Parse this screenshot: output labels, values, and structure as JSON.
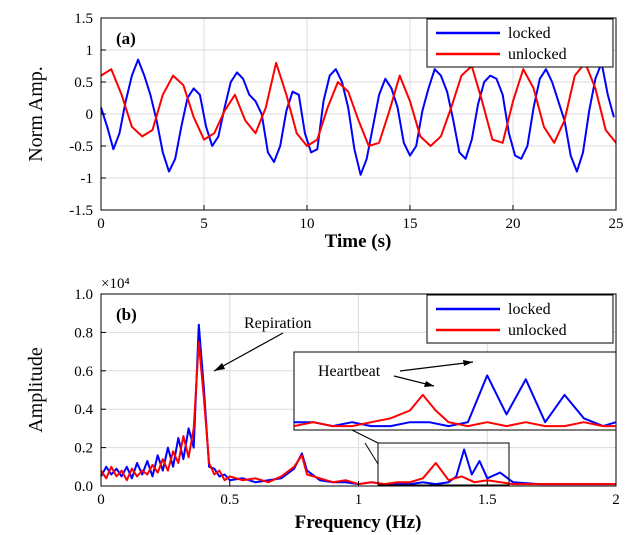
{
  "chart_data": [
    {
      "type": "line",
      "panel_label": "(a)",
      "xlabel": "Time (s)",
      "ylabel": "Norm Amp.",
      "xlim": [
        0,
        25
      ],
      "ylim": [
        -1.5,
        1.5
      ],
      "xticks": [
        "0",
        "5",
        "10",
        "15",
        "20",
        "25"
      ],
      "yticks": [
        "1.5",
        "1",
        "0.5",
        "0",
        "-0.5",
        "-1",
        "-1.5"
      ],
      "grid": true,
      "legend_position": "top-right",
      "series": [
        {
          "name": "locked",
          "color": "#0000ff",
          "x": [
            0.0,
            0.3,
            0.6,
            0.9,
            1.2,
            1.5,
            1.8,
            2.1,
            2.4,
            2.7,
            3.0,
            3.3,
            3.6,
            3.9,
            4.2,
            4.5,
            4.8,
            5.1,
            5.4,
            5.7,
            6.0,
            6.3,
            6.6,
            6.9,
            7.2,
            7.5,
            7.8,
            8.1,
            8.4,
            8.7,
            9.0,
            9.3,
            9.6,
            9.9,
            10.2,
            10.5,
            10.8,
            11.1,
            11.4,
            11.7,
            12.0,
            12.3,
            12.6,
            12.9,
            13.2,
            13.5,
            13.8,
            14.1,
            14.4,
            14.7,
            15.0,
            15.3,
            15.6,
            15.9,
            16.2,
            16.5,
            16.8,
            17.1,
            17.4,
            17.7,
            18.0,
            18.3,
            18.6,
            18.9,
            19.2,
            19.5,
            19.8,
            20.1,
            20.4,
            20.7,
            21.0,
            21.3,
            21.6,
            21.9,
            22.2,
            22.5,
            22.8,
            23.1,
            23.4,
            23.7,
            24.0,
            24.3,
            24.6,
            24.9
          ],
          "y": [
            0.1,
            -0.2,
            -0.55,
            -0.3,
            0.2,
            0.6,
            0.85,
            0.6,
            0.3,
            -0.1,
            -0.6,
            -0.9,
            -0.7,
            -0.2,
            0.25,
            0.4,
            0.3,
            -0.2,
            -0.5,
            -0.35,
            0.1,
            0.5,
            0.65,
            0.55,
            0.3,
            0.2,
            0.0,
            -0.6,
            -0.75,
            -0.5,
            0.05,
            0.35,
            0.3,
            -0.3,
            -0.6,
            -0.55,
            0.2,
            0.6,
            0.7,
            0.5,
            0.1,
            -0.55,
            -0.95,
            -0.7,
            -0.2,
            0.3,
            0.55,
            0.4,
            0.1,
            -0.45,
            -0.65,
            -0.5,
            0.05,
            0.4,
            0.7,
            0.6,
            0.35,
            -0.1,
            -0.6,
            -0.7,
            -0.4,
            0.15,
            0.5,
            0.6,
            0.55,
            0.3,
            -0.3,
            -0.65,
            -0.7,
            -0.5,
            0.1,
            0.55,
            0.7,
            0.5,
            0.2,
            -0.1,
            -0.65,
            -0.9,
            -0.6,
            0.05,
            0.55,
            0.8,
            0.3,
            -0.05
          ]
        },
        {
          "name": "unlocked",
          "color": "#ff0000",
          "x": [
            0.0,
            0.5,
            1.0,
            1.5,
            2.0,
            2.5,
            3.0,
            3.5,
            4.0,
            4.5,
            5.0,
            5.5,
            6.0,
            6.5,
            7.0,
            7.5,
            8.0,
            8.5,
            9.0,
            9.5,
            10.0,
            10.5,
            11.0,
            11.5,
            12.0,
            12.5,
            13.0,
            13.5,
            14.0,
            14.5,
            15.0,
            15.5,
            16.0,
            16.5,
            17.0,
            17.5,
            18.0,
            18.5,
            19.0,
            19.5,
            20.0,
            20.5,
            21.0,
            21.5,
            22.0,
            22.5,
            23.0,
            23.5,
            24.0,
            24.5,
            25.0
          ],
          "y": [
            0.6,
            0.7,
            0.3,
            -0.2,
            -0.35,
            -0.25,
            0.3,
            0.6,
            0.45,
            -0.05,
            -0.4,
            -0.3,
            0.05,
            0.3,
            -0.1,
            -0.3,
            0.1,
            0.8,
            0.3,
            -0.3,
            -0.5,
            -0.4,
            0.1,
            0.5,
            0.35,
            -0.1,
            -0.5,
            -0.45,
            0.05,
            0.6,
            0.2,
            -0.35,
            -0.5,
            -0.35,
            0.1,
            0.6,
            0.75,
            0.2,
            -0.4,
            -0.45,
            0.2,
            0.7,
            0.4,
            -0.2,
            -0.45,
            -0.1,
            0.6,
            0.8,
            0.4,
            -0.25,
            -0.45
          ]
        }
      ]
    },
    {
      "type": "line",
      "panel_label": "(b)",
      "xlabel": "Frequency (Hz)",
      "ylabel": "Amplitude",
      "y_exponent": "×10⁴",
      "xlim": [
        0,
        2
      ],
      "ylim": [
        0,
        1.0
      ],
      "xticks": [
        "0",
        "0.5",
        "1",
        "1.5",
        "2"
      ],
      "yticks": [
        "1.0",
        "0.8",
        "0.6",
        "0.4",
        "0.2",
        "0.0"
      ],
      "grid": true,
      "legend_position": "top-right",
      "annotations": [
        "Repiration",
        "Heartbeat"
      ],
      "series": [
        {
          "name": "locked",
          "color": "#0000ff",
          "x": [
            0.0,
            0.02,
            0.04,
            0.06,
            0.08,
            0.1,
            0.12,
            0.14,
            0.16,
            0.18,
            0.2,
            0.22,
            0.24,
            0.26,
            0.28,
            0.3,
            0.32,
            0.34,
            0.36,
            0.38,
            0.4,
            0.42,
            0.44,
            0.46,
            0.48,
            0.5,
            0.55,
            0.6,
            0.65,
            0.7,
            0.75,
            0.78,
            0.8,
            0.85,
            0.9,
            0.95,
            1.0,
            1.05,
            1.1,
            1.15,
            1.2,
            1.25,
            1.3,
            1.35,
            1.38,
            1.41,
            1.44,
            1.47,
            1.5,
            1.55,
            1.6,
            1.7,
            1.8,
            1.9,
            2.0
          ],
          "y": [
            0.05,
            0.1,
            0.06,
            0.09,
            0.05,
            0.1,
            0.04,
            0.12,
            0.06,
            0.13,
            0.05,
            0.16,
            0.08,
            0.2,
            0.1,
            0.25,
            0.14,
            0.3,
            0.2,
            0.84,
            0.5,
            0.1,
            0.09,
            0.05,
            0.06,
            0.03,
            0.04,
            0.02,
            0.03,
            0.04,
            0.09,
            0.17,
            0.08,
            0.03,
            0.02,
            0.02,
            0.01,
            0.02,
            0.01,
            0.01,
            0.01,
            0.02,
            0.01,
            0.02,
            0.05,
            0.19,
            0.06,
            0.13,
            0.04,
            0.07,
            0.02,
            0.01,
            0.01,
            0.01,
            0.01
          ]
        },
        {
          "name": "unlocked",
          "color": "#ff0000",
          "x": [
            0.0,
            0.02,
            0.04,
            0.06,
            0.08,
            0.1,
            0.12,
            0.14,
            0.16,
            0.18,
            0.2,
            0.22,
            0.24,
            0.26,
            0.28,
            0.3,
            0.32,
            0.34,
            0.36,
            0.38,
            0.4,
            0.42,
            0.44,
            0.46,
            0.48,
            0.5,
            0.55,
            0.6,
            0.65,
            0.7,
            0.75,
            0.78,
            0.8,
            0.85,
            0.9,
            0.95,
            1.0,
            1.05,
            1.1,
            1.15,
            1.2,
            1.25,
            1.3,
            1.35,
            1.4,
            1.45,
            1.5,
            1.6,
            1.7,
            1.8,
            1.9,
            2.0
          ],
          "y": [
            0.08,
            0.04,
            0.1,
            0.05,
            0.08,
            0.03,
            0.09,
            0.05,
            0.08,
            0.06,
            0.11,
            0.07,
            0.14,
            0.08,
            0.18,
            0.12,
            0.26,
            0.15,
            0.3,
            0.75,
            0.45,
            0.12,
            0.06,
            0.08,
            0.03,
            0.05,
            0.03,
            0.04,
            0.02,
            0.05,
            0.1,
            0.16,
            0.06,
            0.04,
            0.02,
            0.03,
            0.01,
            0.02,
            0.01,
            0.02,
            0.02,
            0.04,
            0.12,
            0.03,
            0.05,
            0.02,
            0.03,
            0.01,
            0.01,
            0.01,
            0.01,
            0.01
          ]
        }
      ],
      "inset": {
        "xlim": [
          1.1,
          1.6
        ],
        "ylim": [
          0,
          0.2
        ],
        "series": [
          {
            "name": "locked",
            "color": "#0000ff",
            "x": [
              1.1,
              1.13,
              1.16,
              1.19,
              1.22,
              1.25,
              1.28,
              1.31,
              1.34,
              1.37,
              1.4,
              1.43,
              1.46,
              1.49,
              1.52,
              1.55,
              1.58,
              1.6
            ],
            "y": [
              0.02,
              0.02,
              0.01,
              0.02,
              0.01,
              0.01,
              0.02,
              0.02,
              0.01,
              0.02,
              0.14,
              0.04,
              0.13,
              0.02,
              0.09,
              0.03,
              0.01,
              0.02
            ]
          },
          {
            "name": "unlocked",
            "color": "#ff0000",
            "x": [
              1.1,
              1.13,
              1.16,
              1.19,
              1.22,
              1.25,
              1.28,
              1.3,
              1.32,
              1.34,
              1.37,
              1.4,
              1.43,
              1.46,
              1.49,
              1.52,
              1.55,
              1.58,
              1.6
            ],
            "y": [
              0.01,
              0.02,
              0.01,
              0.01,
              0.02,
              0.03,
              0.05,
              0.09,
              0.05,
              0.02,
              0.01,
              0.02,
              0.01,
              0.02,
              0.01,
              0.01,
              0.02,
              0.01,
              0.01
            ]
          }
        ]
      }
    }
  ]
}
